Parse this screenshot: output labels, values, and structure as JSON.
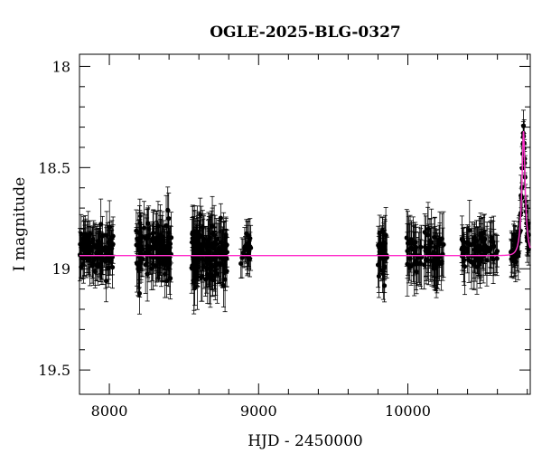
{
  "chart_data": {
    "type": "scatter",
    "title": "OGLE-2025-BLG-0327",
    "xlabel": "HJD - 2450000",
    "ylabel": "I magnitude",
    "xlim": [
      7800,
      10820
    ],
    "ylim": [
      19.62,
      17.94
    ],
    "y_inverted": true,
    "xticks": [
      8000,
      9000,
      10000
    ],
    "yticks": [
      18,
      18.5,
      19,
      19.5
    ],
    "xtick_labels": [
      "8000",
      "9000",
      "10000"
    ],
    "ytick_labels": [
      "18",
      "18.5",
      "19",
      "19.5"
    ],
    "grid": false,
    "legend": "none",
    "colors": {
      "points": "#000000",
      "model": "#ff33cc",
      "axes": "#000000"
    },
    "series": [
      {
        "kind": "points-with-errorbars",
        "seasons": [
          {
            "x_start": 7800,
            "x_end": 8030,
            "y_center": 18.9,
            "y_scatter": 0.09,
            "err": 0.09,
            "n": 110
          },
          {
            "x_start": 8180,
            "x_end": 8420,
            "y_center": 18.9,
            "y_scatter": 0.1,
            "err": 0.1,
            "n": 130
          },
          {
            "x_start": 8550,
            "x_end": 8790,
            "y_center": 18.92,
            "y_scatter": 0.11,
            "err": 0.11,
            "n": 150
          },
          {
            "x_start": 8880,
            "x_end": 8950,
            "y_center": 18.9,
            "y_scatter": 0.08,
            "err": 0.08,
            "n": 22
          },
          {
            "x_start": 9800,
            "x_end": 9860,
            "y_center": 18.95,
            "y_scatter": 0.1,
            "err": 0.1,
            "n": 30
          },
          {
            "x_start": 9990,
            "x_end": 10240,
            "y_center": 18.92,
            "y_scatter": 0.09,
            "err": 0.11,
            "n": 80
          },
          {
            "x_start": 10360,
            "x_end": 10600,
            "y_center": 18.9,
            "y_scatter": 0.08,
            "err": 0.1,
            "n": 80
          },
          {
            "x_start": 10690,
            "x_end": 10815,
            "y_center": 18.9,
            "y_scatter": 0.06,
            "err": 0.08,
            "n": 70,
            "follows_model": true
          }
        ]
      },
      {
        "kind": "model-line",
        "baseline": 18.935,
        "peak_x": 10775,
        "peak_mag": 18.32,
        "tE": 26,
        "u0": 0.255
      }
    ]
  }
}
